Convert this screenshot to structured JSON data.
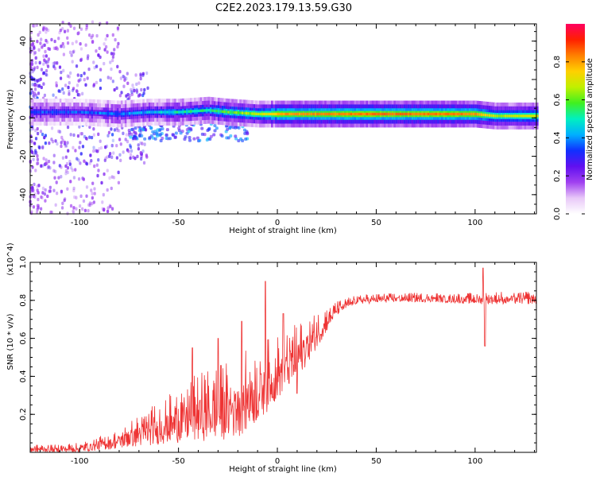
{
  "title": "C2E2.2023.179.13.59.G30",
  "chart_data": [
    {
      "type": "heatmap",
      "name": "spectrogram",
      "xlabel": "Height of straight line (km)",
      "ylabel": "Frequency (Hz)",
      "xlim": [
        -125,
        131
      ],
      "ylim": [
        -50,
        49
      ],
      "xticks": [
        -100,
        -50,
        0,
        50,
        100
      ],
      "yticks": [
        -40,
        -20,
        0,
        20,
        40
      ],
      "colorbar": {
        "label": "Normalized spectral amplitude",
        "range": [
          0,
          1
        ],
        "ticks": [
          "0.0",
          "0.2",
          "0.4",
          "0.6",
          "0.8"
        ],
        "colors": [
          "#ffffff",
          "#e8c8f8",
          "#a040f0",
          "#6010f0",
          "#1030ff",
          "#00b0ff",
          "#00f0c0",
          "#40f020",
          "#c0f000",
          "#ffd000",
          "#ff8000",
          "#ff2000",
          "#ff0060"
        ]
      },
      "band": [
        {
          "x": -125,
          "freq": 3,
          "amp": 0.35
        },
        {
          "x": -100,
          "freq": 3,
          "amp": 0.35
        },
        {
          "x": -80,
          "freq": 2,
          "amp": 0.38
        },
        {
          "x": -65,
          "freq": 3,
          "amp": 0.42
        },
        {
          "x": -50,
          "freq": 3,
          "amp": 0.5
        },
        {
          "x": -35,
          "freq": 4,
          "amp": 0.52
        },
        {
          "x": -25,
          "freq": 3,
          "amp": 0.6
        },
        {
          "x": -10,
          "freq": 2,
          "amp": 0.66
        },
        {
          "x": 0,
          "freq": 2,
          "amp": 0.8
        },
        {
          "x": 20,
          "freq": 2,
          "amp": 0.82
        },
        {
          "x": 50,
          "freq": 2,
          "amp": 0.84
        },
        {
          "x": 80,
          "freq": 2,
          "amp": 0.84
        },
        {
          "x": 100,
          "freq": 2,
          "amp": 0.82
        },
        {
          "x": 110,
          "freq": 1,
          "amp": 0.65
        },
        {
          "x": 131,
          "freq": 1,
          "amp": 0.7
        }
      ]
    },
    {
      "type": "line",
      "name": "snr",
      "xlabel": "Height of straight line (km)",
      "ylabel": "SNR (10 * v/v)",
      "y_multiplier": "(x10^4)",
      "xlim": [
        -125,
        131
      ],
      "ylim": [
        0,
        1.0
      ],
      "xticks": [
        -100,
        -50,
        0,
        50,
        100
      ],
      "yticks": [
        "0.2",
        "0.4",
        "0.6",
        "0.8",
        "1.0"
      ],
      "color": "#ee3333",
      "envelope": [
        {
          "x": -125,
          "low": 0.0,
          "high": 0.04
        },
        {
          "x": -100,
          "low": 0.0,
          "high": 0.05
        },
        {
          "x": -90,
          "low": 0.01,
          "high": 0.09
        },
        {
          "x": -80,
          "low": 0.02,
          "high": 0.12
        },
        {
          "x": -70,
          "low": 0.03,
          "high": 0.2
        },
        {
          "x": -60,
          "low": 0.04,
          "high": 0.27
        },
        {
          "x": -50,
          "low": 0.05,
          "high": 0.34
        },
        {
          "x": -40,
          "low": 0.06,
          "high": 0.42
        },
        {
          "x": -30,
          "low": 0.06,
          "high": 0.46
        },
        {
          "x": -20,
          "low": 0.08,
          "high": 0.52
        },
        {
          "x": -10,
          "low": 0.15,
          "high": 0.58
        },
        {
          "x": 0,
          "low": 0.28,
          "high": 0.62
        },
        {
          "x": 10,
          "low": 0.38,
          "high": 0.68
        },
        {
          "x": 20,
          "low": 0.55,
          "high": 0.74
        },
        {
          "x": 30,
          "low": 0.72,
          "high": 0.8
        },
        {
          "x": 40,
          "low": 0.78,
          "high": 0.83
        },
        {
          "x": 60,
          "low": 0.79,
          "high": 0.84
        },
        {
          "x": 80,
          "low": 0.79,
          "high": 0.84
        },
        {
          "x": 100,
          "low": 0.78,
          "high": 0.84
        },
        {
          "x": 115,
          "low": 0.78,
          "high": 0.85
        },
        {
          "x": 131,
          "low": 0.78,
          "high": 0.85
        }
      ],
      "spikes": [
        {
          "x": -43,
          "y": 0.55
        },
        {
          "x": -30,
          "y": 0.6
        },
        {
          "x": -18,
          "y": 0.69
        },
        {
          "x": -6,
          "y": 0.9
        },
        {
          "x": 3,
          "y": 0.73
        },
        {
          "x": 10,
          "y": 0.31
        },
        {
          "x": 104,
          "y": 0.97
        },
        {
          "x": 105,
          "y": 0.56
        }
      ]
    }
  ]
}
